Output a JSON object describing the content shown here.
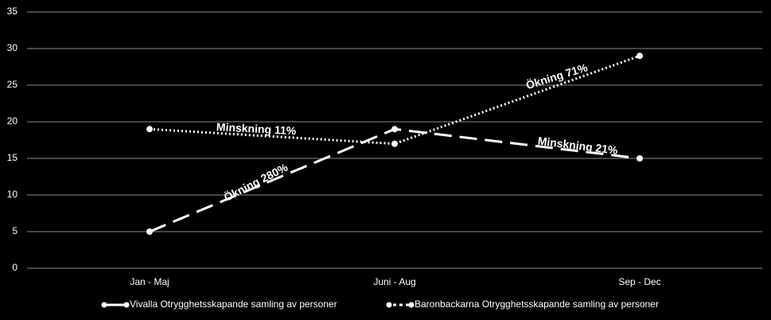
{
  "chart_data": {
    "type": "line",
    "categories": [
      "Jan - Maj",
      "Juni - Aug",
      "Sep - Dec"
    ],
    "series": [
      {
        "name": "Vivalla Otrygghetsskapande samling av personer",
        "color": "#ffffff",
        "style": "dashed",
        "values": [
          5,
          19,
          15
        ]
      },
      {
        "name": "Baronbackarna Otrygghetsskapande samling av personer",
        "color": "#ffffff",
        "style": "dotted",
        "values": [
          19,
          17,
          29
        ]
      }
    ],
    "ylim": [
      0,
      35
    ],
    "yticks": [
      0,
      5,
      10,
      15,
      20,
      25,
      30,
      35
    ],
    "grid": true,
    "annotations": [
      "Ökning 280%",
      "Minskning 21%",
      "Minskning 11%",
      "Ökning 71%"
    ]
  }
}
